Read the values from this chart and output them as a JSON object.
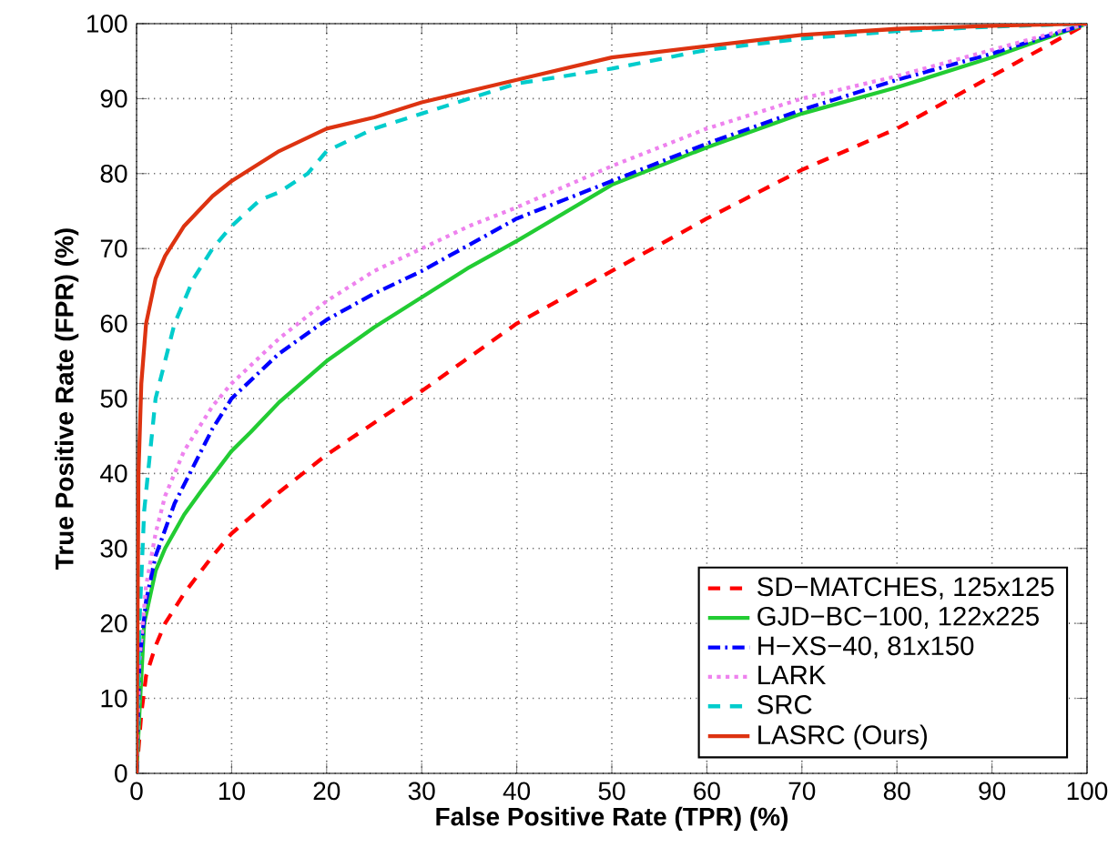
{
  "chart_data": {
    "type": "line",
    "xlabel": "False Positive Rate (TPR) (%)",
    "ylabel": "True Positive Rate (FPR) (%)",
    "xlim": [
      0,
      100
    ],
    "ylim": [
      0,
      100
    ],
    "xticks": [
      0,
      10,
      20,
      30,
      40,
      50,
      60,
      70,
      80,
      90,
      100
    ],
    "yticks": [
      0,
      10,
      20,
      30,
      40,
      50,
      60,
      70,
      80,
      90,
      100
    ],
    "grid": true,
    "legend": "bottom right",
    "marker": "none",
    "series": [
      {
        "name": "SD−MATCHES, 125x125",
        "color": "#ff0000",
        "line_style": "dashed",
        "x": [
          0,
          0.5,
          1,
          2,
          3,
          5,
          8,
          10,
          15,
          20,
          30,
          40,
          50,
          60,
          70,
          80,
          90,
          100
        ],
        "values": [
          0,
          8,
          13,
          17,
          20,
          24,
          29,
          32,
          37.5,
          42.5,
          51,
          60,
          67,
          74,
          80.5,
          86,
          93,
          100
        ]
      },
      {
        "name": "GJD−BC−100, 122x225",
        "color": "#22cc33",
        "line_style": "solid",
        "x": [
          0,
          0.3,
          0.8,
          2,
          3,
          5,
          7,
          10,
          12,
          15,
          20,
          25,
          30,
          35,
          40,
          50,
          60,
          70,
          80,
          90,
          100
        ],
        "values": [
          0,
          8,
          20,
          27,
          30,
          34.5,
          38,
          43,
          45.5,
          49.5,
          55,
          59.5,
          63.5,
          67.5,
          71,
          78.5,
          83.5,
          88,
          91.5,
          95.5,
          100
        ]
      },
      {
        "name": "H−XS−40, 81x150",
        "color": "#0000ff",
        "line_style": "dashdot",
        "x": [
          0,
          0.3,
          1,
          2,
          4,
          6,
          8,
          10,
          15,
          20,
          25,
          30,
          40,
          50,
          60,
          70,
          80,
          90,
          100
        ],
        "values": [
          0,
          15,
          23,
          29,
          36,
          41,
          46,
          50,
          56,
          60.5,
          64,
          67,
          74,
          79,
          84,
          88.5,
          92.5,
          96,
          100
        ]
      },
      {
        "name": "LARK",
        "color": "#ee82ee",
        "line_style": "dotted",
        "x": [
          0,
          0.3,
          1,
          2,
          3,
          5,
          8,
          10,
          15,
          20,
          25,
          30,
          35,
          40,
          50,
          60,
          70,
          80,
          90,
          100
        ],
        "values": [
          0,
          15,
          25,
          32,
          37,
          43,
          49,
          52,
          58,
          63,
          67,
          70,
          73,
          75.5,
          81,
          86,
          90,
          93,
          96.5,
          100
        ]
      },
      {
        "name": "SRC",
        "color": "#00cccc",
        "line_style": "dashed",
        "x": [
          0,
          0.3,
          0.8,
          2,
          4,
          6,
          8,
          10,
          13,
          15,
          18,
          20,
          25,
          30,
          40,
          50,
          60,
          70,
          80,
          90,
          100
        ],
        "values": [
          0,
          20,
          35,
          50,
          60,
          66,
          70,
          73,
          76.5,
          77.5,
          80,
          83,
          86,
          88,
          92,
          94,
          96.5,
          98,
          99,
          99.6,
          100
        ]
      },
      {
        "name": "LASRC (Ours)",
        "color": "#dd3311",
        "line_style": "solid",
        "x": [
          0,
          0.2,
          0.5,
          1,
          2,
          3,
          5,
          8,
          10,
          15,
          20,
          25,
          30,
          40,
          50,
          60,
          70,
          80,
          90,
          100
        ],
        "values": [
          0,
          40,
          52,
          60,
          66,
          69,
          73,
          77,
          79,
          83,
          86,
          87.5,
          89.5,
          92.5,
          95.5,
          97,
          98.5,
          99.3,
          99.7,
          100
        ]
      }
    ]
  }
}
